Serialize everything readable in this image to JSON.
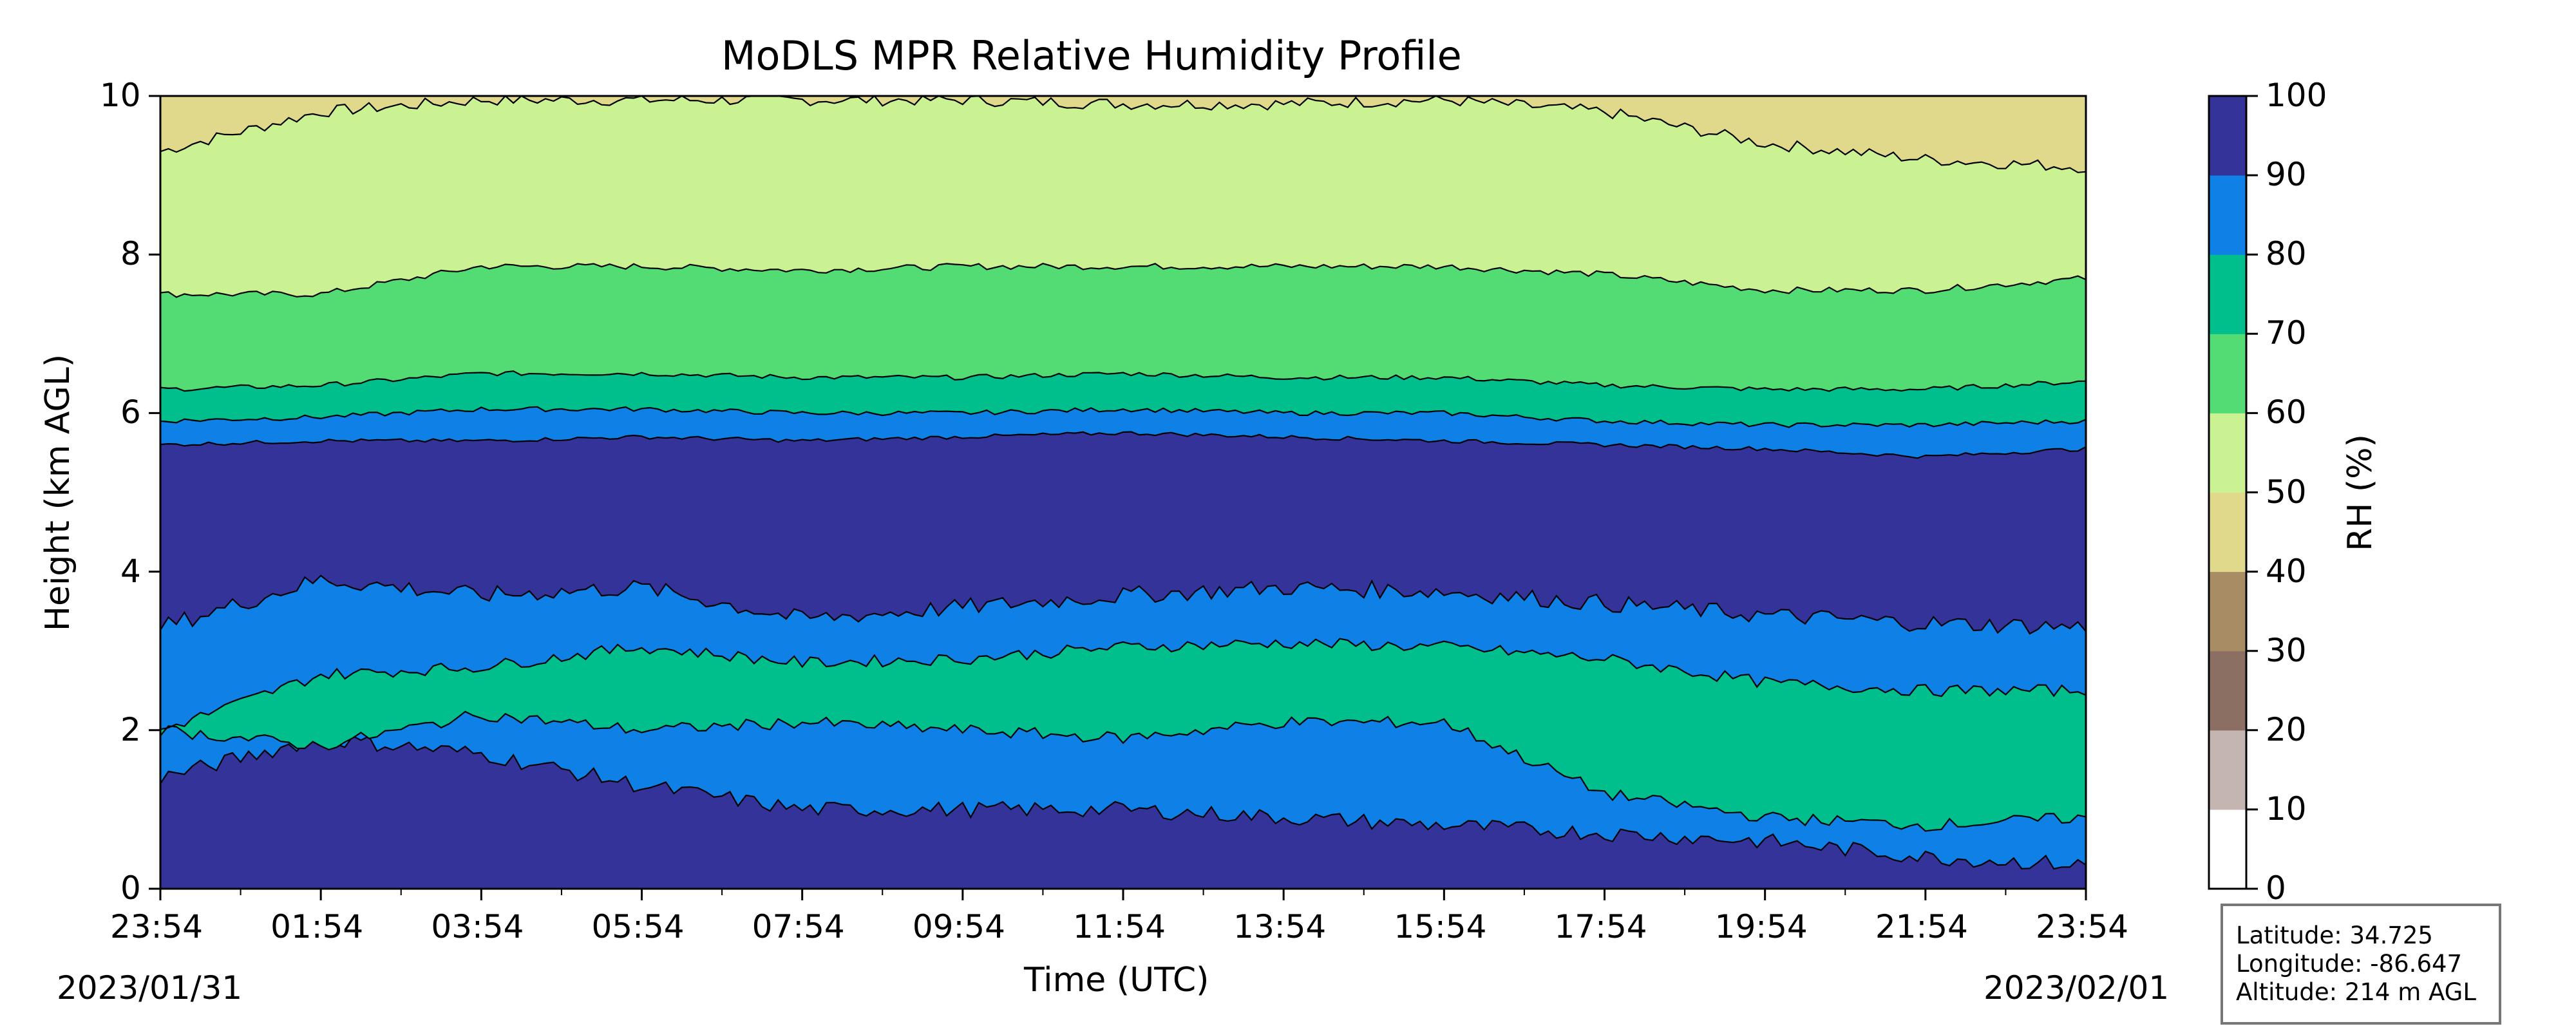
{
  "chart_data": {
    "type": "heatmap",
    "title": "MoDLS MPR Relative Humidity Profile",
    "xlabel": "Time (UTC)",
    "ylabel": "Height (km AGL)",
    "x_ticks": [
      "23:54",
      "01:54",
      "03:54",
      "05:54",
      "07:54",
      "09:54",
      "11:54",
      "13:54",
      "15:54",
      "17:54",
      "19:54",
      "21:54",
      "23:54"
    ],
    "x_range": [
      "2023/01/31 23:54",
      "2023/02/01 23:54"
    ],
    "start_date": "2023/01/31",
    "end_date": "2023/02/01",
    "y_ticks": [
      0,
      2,
      4,
      6,
      8,
      10
    ],
    "ylim": [
      0,
      10
    ],
    "colorbar": {
      "label": "RH (%)",
      "ticks": [
        0,
        10,
        20,
        30,
        40,
        50,
        60,
        70,
        80,
        90,
        100
      ],
      "levels": [
        {
          "range": [
            0,
            10
          ],
          "color": "#ffffff"
        },
        {
          "range": [
            10,
            20
          ],
          "color": "#c4b5b0"
        },
        {
          "range": [
            20,
            30
          ],
          "color": "#8c6f63"
        },
        {
          "range": [
            30,
            40
          ],
          "color": "#a88c63"
        },
        {
          "range": [
            40,
            50
          ],
          "color": "#e0d98c"
        },
        {
          "range": [
            50,
            60
          ],
          "color": "#cbf292"
        },
        {
          "range": [
            60,
            70
          ],
          "color": "#54dc74"
        },
        {
          "range": [
            70,
            80
          ],
          "color": "#00bf8c"
        },
        {
          "range": [
            80,
            90
          ],
          "color": "#0e80e6"
        },
        {
          "range": [
            90,
            100
          ],
          "color": "#333399"
        }
      ]
    },
    "contour_boundaries_km": {
      "note_hours": [
        0,
        2,
        4,
        6,
        8,
        10,
        12,
        14,
        16,
        18,
        20,
        22,
        24
      ],
      "rh40_50_lower": [
        9.3,
        9.8,
        9.95,
        9.95,
        9.95,
        9.95,
        9.9,
        9.9,
        9.95,
        9.8,
        9.4,
        9.2,
        9.1
      ],
      "rh50_60_lower": [
        7.5,
        7.5,
        7.85,
        7.85,
        7.8,
        7.85,
        7.85,
        7.85,
        7.85,
        7.75,
        7.55,
        7.55,
        7.7
      ],
      "rh60_70_lower": [
        6.3,
        6.35,
        6.5,
        6.5,
        6.45,
        6.45,
        6.5,
        6.45,
        6.45,
        6.35,
        6.3,
        6.3,
        6.4
      ],
      "rh70_80_lower": [
        5.9,
        5.95,
        6.05,
        6.05,
        6.0,
        6.0,
        6.05,
        6.0,
        6.0,
        5.9,
        5.85,
        5.85,
        5.9
      ],
      "rh80_90_lower": [
        5.6,
        5.65,
        5.65,
        5.7,
        5.65,
        5.7,
        5.75,
        5.7,
        5.65,
        5.6,
        5.55,
        5.45,
        5.55
      ],
      "rh90_lower_top_of_band": [
        3.3,
        3.9,
        3.7,
        3.8,
        3.4,
        3.55,
        3.7,
        3.8,
        3.75,
        3.6,
        3.45,
        3.35,
        3.3
      ],
      "rh80_90_bottom": [
        1.4,
        1.9,
        1.7,
        1.3,
        1.0,
        1.0,
        1.0,
        0.9,
        0.8,
        0.7,
        0.6,
        0.4,
        0.3
      ],
      "rh70_80_top": [
        2.0,
        2.7,
        2.8,
        3.05,
        2.85,
        2.9,
        3.05,
        3.1,
        3.05,
        2.9,
        2.6,
        2.5,
        2.5
      ],
      "rh70_80_bottom": [
        2.0,
        1.8,
        2.2,
        2.0,
        2.1,
        2.0,
        1.9,
        2.1,
        2.1,
        1.2,
        0.9,
        0.8,
        0.9
      ]
    }
  },
  "info": {
    "latitude": "Latitude: 34.725",
    "longitude": "Longitude: -86.647",
    "altitude": "Altitude: 214 m AGL"
  }
}
